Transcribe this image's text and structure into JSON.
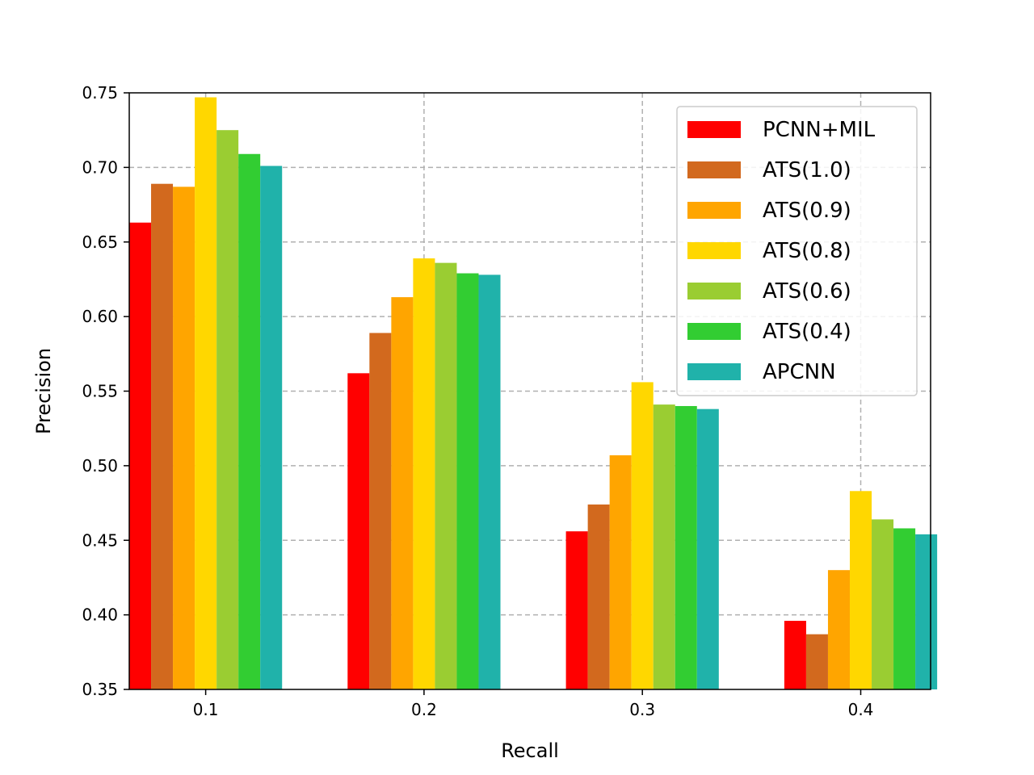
{
  "chart_data": {
    "type": "bar",
    "title": "",
    "xlabel": "Recall",
    "ylabel": "Precision",
    "categories": [
      "0.1",
      "0.2",
      "0.3",
      "0.4"
    ],
    "ylim": [
      0.35,
      0.75
    ],
    "yticks": [
      "0.35",
      "0.40",
      "0.45",
      "0.50",
      "0.55",
      "0.60",
      "0.65",
      "0.70",
      "0.75"
    ],
    "grid": true,
    "legend_position": "top-right",
    "series": [
      {
        "name": "PCNN+MIL",
        "color": "#ff0000",
        "values": [
          0.663,
          0.562,
          0.456,
          0.396
        ]
      },
      {
        "name": "ATS(1.0)",
        "color": "#d2691e",
        "values": [
          0.689,
          0.589,
          0.474,
          0.387
        ]
      },
      {
        "name": "ATS(0.9)",
        "color": "#ffa500",
        "values": [
          0.687,
          0.613,
          0.507,
          0.43
        ]
      },
      {
        "name": "ATS(0.8)",
        "color": "#ffd700",
        "values": [
          0.747,
          0.639,
          0.556,
          0.483
        ]
      },
      {
        "name": "ATS(0.6)",
        "color": "#9acd32",
        "values": [
          0.725,
          0.636,
          0.541,
          0.464
        ]
      },
      {
        "name": "ATS(0.4)",
        "color": "#32cd32",
        "values": [
          0.709,
          0.629,
          0.54,
          0.458
        ]
      },
      {
        "name": "APCNN",
        "color": "#20b2aa",
        "values": [
          0.701,
          0.628,
          0.538,
          0.454
        ]
      }
    ]
  }
}
